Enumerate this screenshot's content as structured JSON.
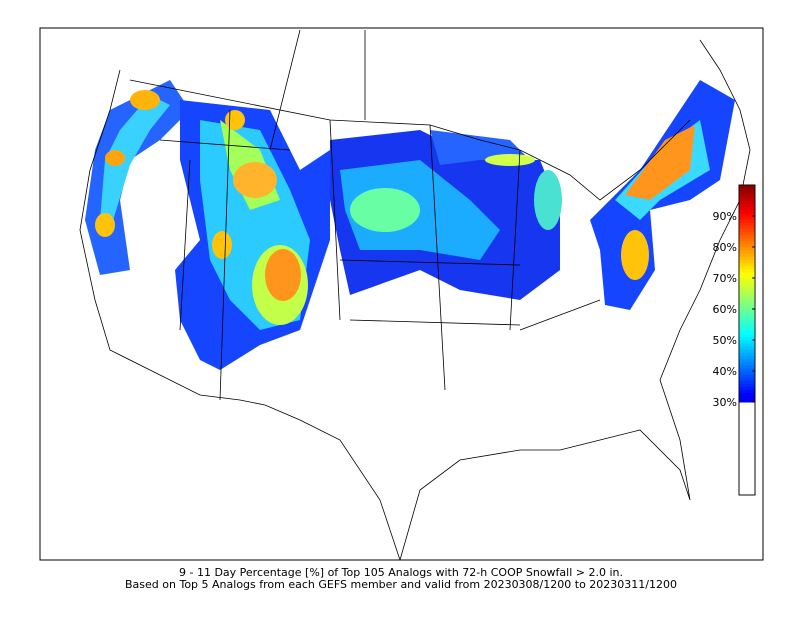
{
  "caption": {
    "line1": "9 - 11 Day Percentage [%] of Top 105 Analogs with 72-h COOP Snowfall > 2.0 in.",
    "line2": "Based on Top 5 Analogs from each GEFS member and valid from 20230308/1200 to 20230311/1200"
  },
  "colorbar": {
    "lim": [
      0,
      100
    ],
    "ticks": [
      {
        "value": 30,
        "label": "30%"
      },
      {
        "value": 40,
        "label": "40%"
      },
      {
        "value": 50,
        "label": "50%"
      },
      {
        "value": 60,
        "label": "60%"
      },
      {
        "value": 70,
        "label": "70%"
      },
      {
        "value": 80,
        "label": "80%"
      },
      {
        "value": 90,
        "label": "90%"
      }
    ]
  }
}
